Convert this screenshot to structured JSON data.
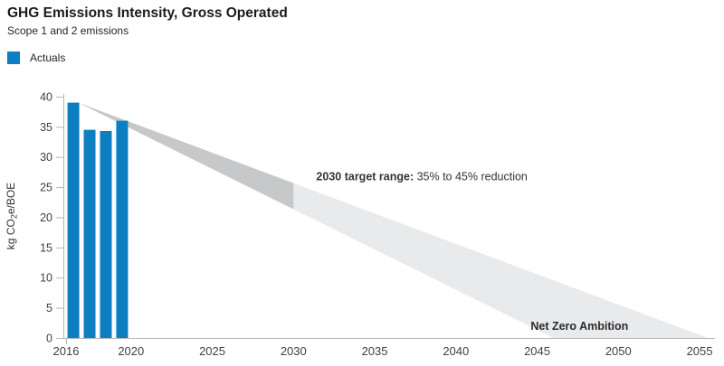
{
  "header": {
    "title": "GHG Emissions Intensity, Gross Operated",
    "subtitle": "Scope 1 and 2 emissions"
  },
  "legend": {
    "items": [
      {
        "label": "Actuals",
        "color": "#0b7fc2"
      }
    ]
  },
  "chart_data": {
    "type": "bar",
    "title": "GHG Emissions Intensity, Gross Operated",
    "subtitle": "Scope 1 and 2 emissions",
    "categories": [
      "2016",
      "2017",
      "2018",
      "2019"
    ],
    "series": [
      {
        "name": "Actuals",
        "values": [
          39,
          34.5,
          34.3,
          36
        ]
      }
    ],
    "ylabel": "kg CO₂e/BOE",
    "ylabel_parts": [
      {
        "t": "kg CO"
      },
      {
        "t": "2",
        "sub": true
      },
      {
        "t": "e/BOE"
      }
    ],
    "xlabel": "",
    "ylim": [
      0,
      40
    ],
    "xlim": [
      2015.8,
      2056.5
    ],
    "yticks": [
      0,
      5,
      10,
      15,
      20,
      25,
      30,
      35,
      40
    ],
    "xticks": [
      2016,
      2020,
      2025,
      2030,
      2035,
      2040,
      2045,
      2050,
      2055
    ],
    "grid": false,
    "legend_position": "top-left",
    "bar_color": "#0b7fc2",
    "axis_color": "#b4b6b8",
    "tick_label_color": "#414042",
    "target_fan": {
      "start_year": 2016.75,
      "start_value": 39,
      "boundary_year": 2030,
      "reduction_pct_2030": [
        35,
        45
      ],
      "zero_years": [
        2046,
        2055.5
      ],
      "dark_color": "#c6c8ca",
      "light_color": "#e9eaec"
    },
    "annotations": [
      {
        "bold": "2030 target range:",
        "text": " 35% to 45% reduction",
        "year": 2031.4,
        "value": 26.8,
        "color": "#333333"
      },
      {
        "bold": "Net Zero Ambition",
        "text": "",
        "year": 2044.6,
        "value": 2.0,
        "color": "#2b2b2b"
      }
    ]
  }
}
